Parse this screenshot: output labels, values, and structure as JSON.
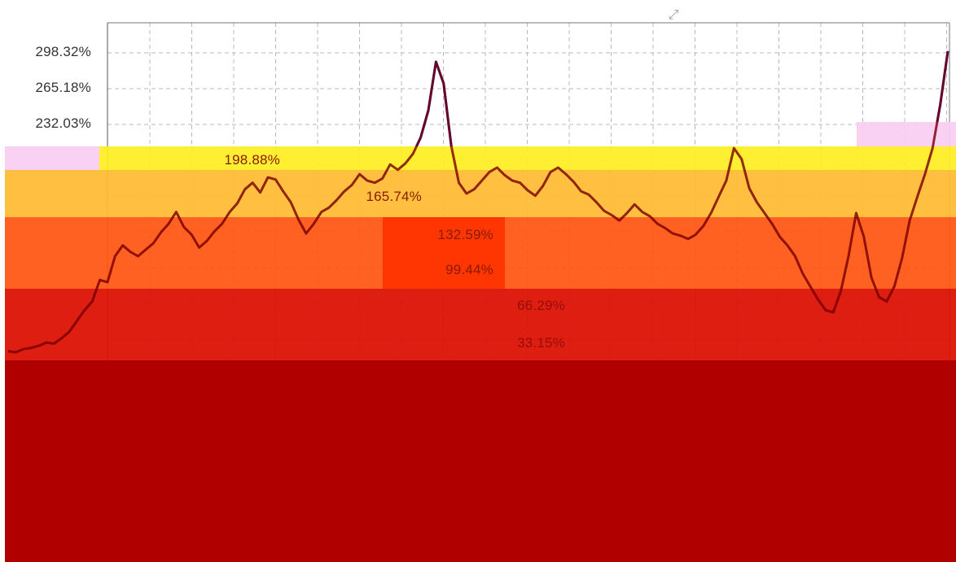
{
  "colors": {
    "background": "#ffffff",
    "grid": "#b8b8b8",
    "axis": "#555555",
    "series_line": "#1a1acc",
    "dark_series": "#7a0000",
    "band_pink": "#f7cdf2",
    "band_yellow": "#ffee22",
    "band_amber": "#ffbb33",
    "band_orange": "#ff5511",
    "band_orange_red": "#ff3300",
    "band_red": "#dd0d00",
    "band_dark_red": "#b00000"
  },
  "corner_icon": {
    "name": "expand-icon",
    "glyph": "⤢"
  },
  "chart_data": {
    "type": "line",
    "y_tick_labels": [
      "298.32%",
      "265.18%",
      "232.03%",
      "198.88%",
      "165.74%",
      "132.59%",
      "99.44%",
      "66.29%",
      "33.15%"
    ],
    "y_ticks": [
      298.32,
      265.18,
      232.03,
      198.88,
      165.74,
      132.59,
      99.44,
      66.29,
      33.15
    ],
    "ylim": [
      0,
      320
    ],
    "grid": true,
    "title": "",
    "xlabel": "",
    "ylabel": "",
    "series": [
      {
        "values": [
          22,
          21,
          24,
          25,
          27,
          30,
          29,
          34,
          40,
          50,
          60,
          68,
          88,
          86,
          110,
          120,
          114,
          110,
          116,
          122,
          132,
          140,
          151,
          137,
          130,
          118,
          124,
          133,
          140,
          151,
          159,
          172,
          178,
          169,
          183,
          181,
          170,
          160,
          144,
          131,
          140,
          151,
          155,
          162,
          170,
          176,
          186,
          180,
          178,
          182,
          195,
          190,
          196,
          205,
          220,
          245,
          290,
          270,
          212,
          178,
          168,
          172,
          180,
          188,
          192,
          185,
          180,
          178,
          171,
          166,
          175,
          188,
          192,
          186,
          179,
          170,
          167,
          160,
          152,
          148,
          143,
          150,
          158,
          151,
          147,
          140,
          136,
          131,
          129,
          126,
          130,
          138,
          150,
          165,
          180,
          210,
          200,
          173,
          160,
          150,
          140,
          128,
          120,
          110,
          94,
          82,
          70,
          60,
          58,
          78,
          110,
          150,
          128,
          90,
          72,
          68,
          82,
          108,
          143,
          165,
          186,
          210,
          250,
          300
        ]
      }
    ]
  }
}
